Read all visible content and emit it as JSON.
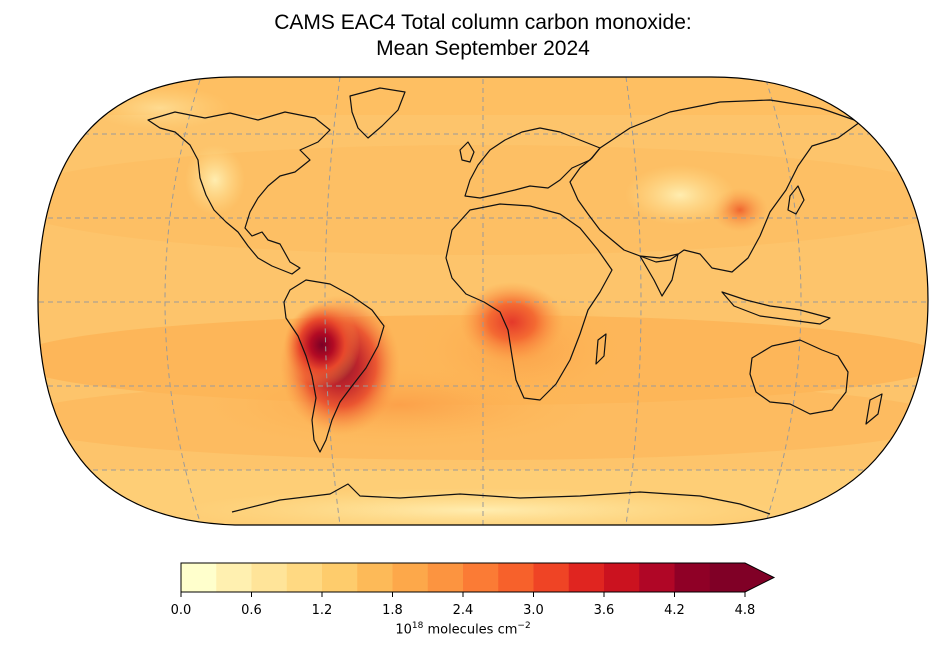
{
  "title": {
    "line1": "CAMS EAC4 Total column carbon monoxide:",
    "line2": "Mean September 2024"
  },
  "colorbar": {
    "min": 0.0,
    "max": 4.8,
    "extend": "max",
    "ticks": [
      "0.0",
      "0.6",
      "1.2",
      "1.8",
      "2.4",
      "3.0",
      "3.6",
      "4.2",
      "4.8"
    ],
    "unit_prefix": "10",
    "unit_exponent": "18",
    "unit_text": "molecules cm",
    "unit_power": "−2",
    "colors": [
      "#ffffcc",
      "#fff0b0",
      "#ffe499",
      "#ffd982",
      "#fecc6c",
      "#fdba58",
      "#fda84a",
      "#fc9440",
      "#fb7b35",
      "#f7612b",
      "#ef4425",
      "#e02520",
      "#cb121f",
      "#b00626",
      "#8f0026",
      "#800026"
    ]
  },
  "map": {
    "projection": "Robinson",
    "background_color": "#fdc46b",
    "land_outline_color": "#000000",
    "gridline_color": "#9a9a9a",
    "gridlines": true
  }
}
